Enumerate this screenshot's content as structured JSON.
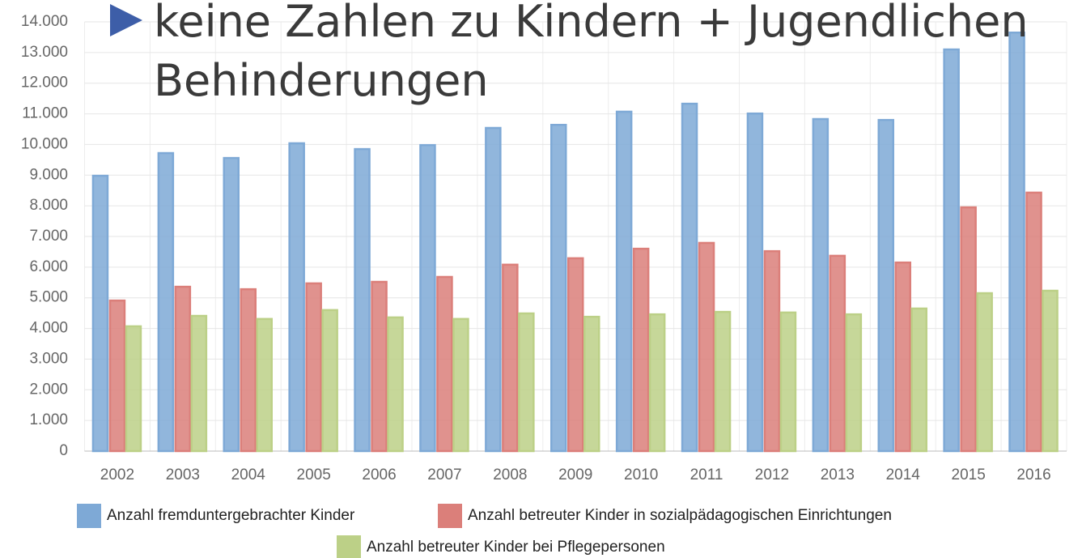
{
  "chart_data": {
    "type": "bar",
    "annotations": [
      "keine Zahlen zu Kindern + Jugendlichen",
      "Behinderungen"
    ],
    "categories": [
      "2002",
      "2003",
      "2004",
      "2005",
      "2006",
      "2007",
      "2008",
      "2009",
      "2010",
      "2011",
      "2012",
      "2013",
      "2014",
      "2015",
      "2016"
    ],
    "series": [
      {
        "name": "Anzahl fremduntergebrachter Kinder",
        "color": "#7ea9d6",
        "values": [
          8980,
          9720,
          9560,
          10040,
          9850,
          9980,
          10540,
          10640,
          11070,
          11330,
          11010,
          10830,
          10800,
          13100,
          13650
        ]
      },
      {
        "name": "Anzahl betreuter Kinder in sozialpädagogischen Einrichtungen",
        "color": "#db7f7a",
        "values": [
          4910,
          5360,
          5280,
          5470,
          5520,
          5680,
          6080,
          6290,
          6600,
          6790,
          6520,
          6370,
          6150,
          7950,
          8430
        ]
      },
      {
        "name": "Anzahl betreuter Kinder bei Pflegepersonen",
        "color": "#bcd087",
        "values": [
          4070,
          4410,
          4310,
          4600,
          4360,
          4310,
          4490,
          4380,
          4460,
          4540,
          4520,
          4460,
          4650,
          5150,
          5230
        ]
      }
    ],
    "ylim": [
      0,
      14000
    ],
    "yticks": [
      0,
      {
        "value": 1000,
        "label": "1.000"
      },
      {
        "value": 2000,
        "label": "2.000"
      },
      {
        "value": 3000,
        "label": "3.000"
      },
      {
        "value": 4000,
        "label": "4.000"
      },
      {
        "value": 5000,
        "label": "5.000"
      },
      {
        "value": 6000,
        "label": "6.000"
      },
      {
        "value": 7000,
        "label": "7.000"
      },
      {
        "value": 8000,
        "label": "8.000"
      },
      {
        "value": 9000,
        "label": "9.000"
      },
      {
        "value": 10000,
        "label": "10.000"
      },
      {
        "value": 11000,
        "label": "11.000"
      },
      {
        "value": 12000,
        "label": "12.000"
      },
      {
        "value": 13000,
        "label": "13.000"
      },
      {
        "value": 14000,
        "label": "14.000"
      }
    ],
    "grid": true,
    "legend": "bottom"
  }
}
